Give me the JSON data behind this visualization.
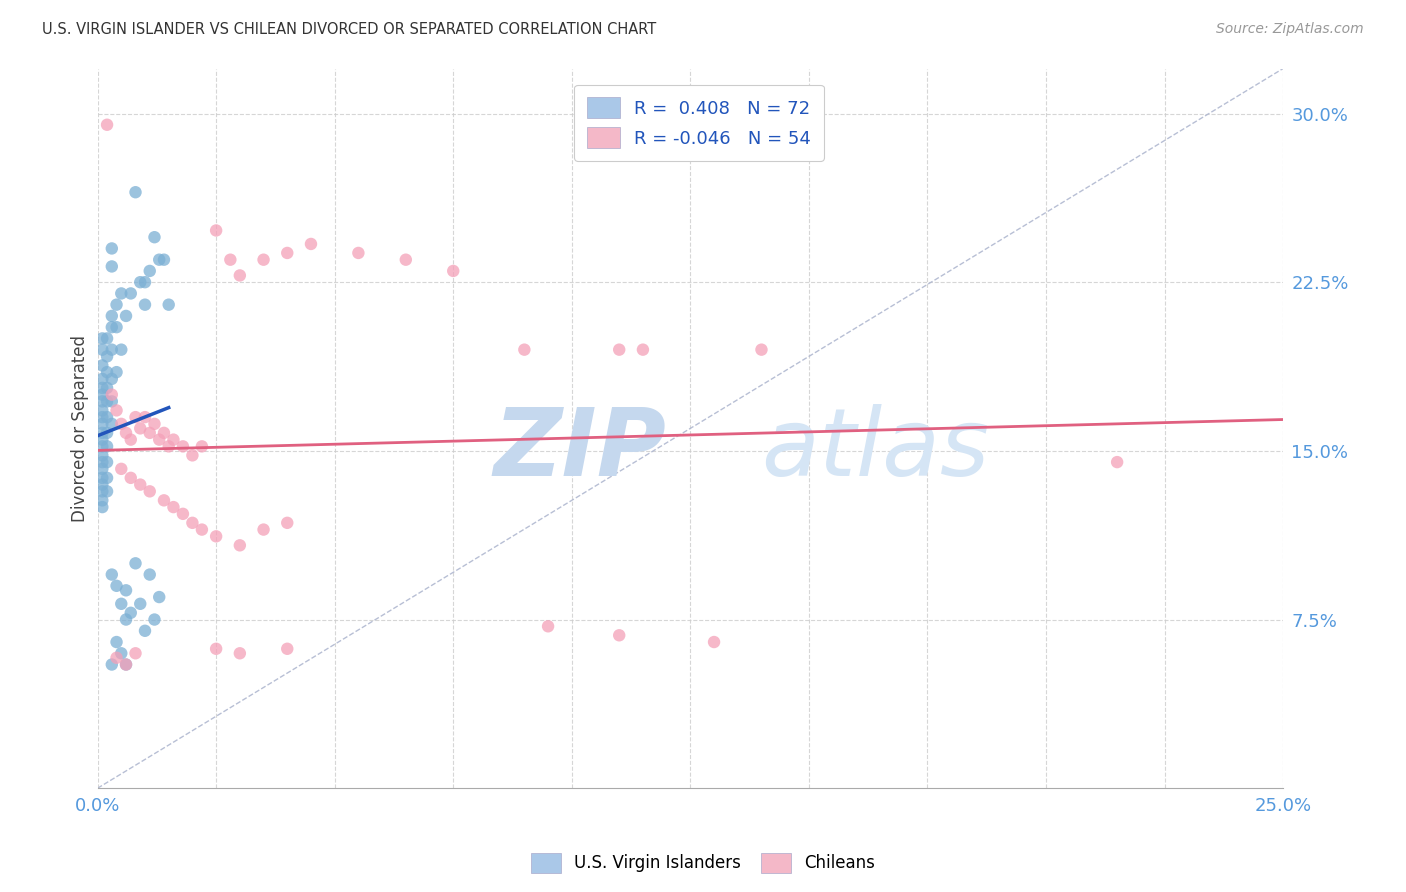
{
  "title": "U.S. VIRGIN ISLANDER VS CHILEAN DIVORCED OR SEPARATED CORRELATION CHART",
  "source": "Source: ZipAtlas.com",
  "ylabel": "Divorced or Separated",
  "xlim": [
    0.0,
    0.25
  ],
  "ylim": [
    0.0,
    0.32
  ],
  "xticks": [
    0.0,
    0.025,
    0.05,
    0.075,
    0.1,
    0.125,
    0.15,
    0.175,
    0.2,
    0.225,
    0.25
  ],
  "yticks": [
    0.075,
    0.15,
    0.225,
    0.3
  ],
  "background_color": "#ffffff",
  "grid_color": "#cccccc",
  "us_vi_color": "#7bafd4",
  "chilean_color": "#f4a0b8",
  "us_vi_line_color": "#2255bb",
  "chilean_line_color": "#e06080",
  "diagonal_color": "#b0b8d0",
  "us_vi_R": 0.408,
  "us_vi_N": 72,
  "chilean_R": -0.046,
  "chilean_N": 54,
  "us_vi_points": [
    [
      0.001,
      0.2
    ],
    [
      0.001,
      0.195
    ],
    [
      0.001,
      0.188
    ],
    [
      0.001,
      0.182
    ],
    [
      0.001,
      0.178
    ],
    [
      0.001,
      0.175
    ],
    [
      0.001,
      0.172
    ],
    [
      0.001,
      0.168
    ],
    [
      0.001,
      0.165
    ],
    [
      0.001,
      0.162
    ],
    [
      0.001,
      0.158
    ],
    [
      0.001,
      0.155
    ],
    [
      0.001,
      0.152
    ],
    [
      0.001,
      0.148
    ],
    [
      0.001,
      0.145
    ],
    [
      0.001,
      0.142
    ],
    [
      0.001,
      0.138
    ],
    [
      0.001,
      0.135
    ],
    [
      0.001,
      0.132
    ],
    [
      0.001,
      0.128
    ],
    [
      0.001,
      0.125
    ],
    [
      0.002,
      0.2
    ],
    [
      0.002,
      0.192
    ],
    [
      0.002,
      0.185
    ],
    [
      0.002,
      0.178
    ],
    [
      0.002,
      0.172
    ],
    [
      0.002,
      0.165
    ],
    [
      0.002,
      0.158
    ],
    [
      0.002,
      0.152
    ],
    [
      0.002,
      0.145
    ],
    [
      0.002,
      0.138
    ],
    [
      0.002,
      0.132
    ],
    [
      0.003,
      0.24
    ],
    [
      0.003,
      0.232
    ],
    [
      0.003,
      0.21
    ],
    [
      0.003,
      0.205
    ],
    [
      0.003,
      0.195
    ],
    [
      0.003,
      0.182
    ],
    [
      0.003,
      0.172
    ],
    [
      0.003,
      0.162
    ],
    [
      0.004,
      0.215
    ],
    [
      0.004,
      0.205
    ],
    [
      0.004,
      0.185
    ],
    [
      0.005,
      0.22
    ],
    [
      0.005,
      0.195
    ],
    [
      0.006,
      0.21
    ],
    [
      0.007,
      0.22
    ],
    [
      0.008,
      0.265
    ],
    [
      0.009,
      0.225
    ],
    [
      0.01,
      0.225
    ],
    [
      0.01,
      0.215
    ],
    [
      0.011,
      0.23
    ],
    [
      0.012,
      0.245
    ],
    [
      0.013,
      0.235
    ],
    [
      0.014,
      0.235
    ],
    [
      0.015,
      0.215
    ],
    [
      0.003,
      0.095
    ],
    [
      0.004,
      0.09
    ],
    [
      0.005,
      0.082
    ],
    [
      0.006,
      0.088
    ],
    [
      0.006,
      0.075
    ],
    [
      0.007,
      0.078
    ],
    [
      0.008,
      0.1
    ],
    [
      0.009,
      0.082
    ],
    [
      0.01,
      0.07
    ],
    [
      0.011,
      0.095
    ],
    [
      0.012,
      0.075
    ],
    [
      0.013,
      0.085
    ],
    [
      0.003,
      0.055
    ],
    [
      0.004,
      0.065
    ],
    [
      0.005,
      0.06
    ],
    [
      0.006,
      0.055
    ]
  ],
  "chilean_points": [
    [
      0.002,
      0.295
    ],
    [
      0.003,
      0.175
    ],
    [
      0.004,
      0.168
    ],
    [
      0.005,
      0.162
    ],
    [
      0.006,
      0.158
    ],
    [
      0.007,
      0.155
    ],
    [
      0.008,
      0.165
    ],
    [
      0.009,
      0.16
    ],
    [
      0.01,
      0.165
    ],
    [
      0.011,
      0.158
    ],
    [
      0.012,
      0.162
    ],
    [
      0.013,
      0.155
    ],
    [
      0.014,
      0.158
    ],
    [
      0.015,
      0.152
    ],
    [
      0.016,
      0.155
    ],
    [
      0.018,
      0.152
    ],
    [
      0.02,
      0.148
    ],
    [
      0.022,
      0.152
    ],
    [
      0.025,
      0.248
    ],
    [
      0.028,
      0.235
    ],
    [
      0.03,
      0.228
    ],
    [
      0.035,
      0.235
    ],
    [
      0.04,
      0.238
    ],
    [
      0.045,
      0.242
    ],
    [
      0.055,
      0.238
    ],
    [
      0.065,
      0.235
    ],
    [
      0.075,
      0.23
    ],
    [
      0.09,
      0.195
    ],
    [
      0.11,
      0.195
    ],
    [
      0.115,
      0.195
    ],
    [
      0.14,
      0.195
    ],
    [
      0.215,
      0.145
    ],
    [
      0.005,
      0.142
    ],
    [
      0.007,
      0.138
    ],
    [
      0.009,
      0.135
    ],
    [
      0.011,
      0.132
    ],
    [
      0.014,
      0.128
    ],
    [
      0.016,
      0.125
    ],
    [
      0.018,
      0.122
    ],
    [
      0.02,
      0.118
    ],
    [
      0.022,
      0.115
    ],
    [
      0.025,
      0.112
    ],
    [
      0.03,
      0.108
    ],
    [
      0.035,
      0.115
    ],
    [
      0.04,
      0.118
    ],
    [
      0.004,
      0.058
    ],
    [
      0.006,
      0.055
    ],
    [
      0.008,
      0.06
    ],
    [
      0.025,
      0.062
    ],
    [
      0.03,
      0.06
    ],
    [
      0.04,
      0.062
    ],
    [
      0.095,
      0.072
    ],
    [
      0.11,
      0.068
    ],
    [
      0.13,
      0.065
    ]
  ]
}
